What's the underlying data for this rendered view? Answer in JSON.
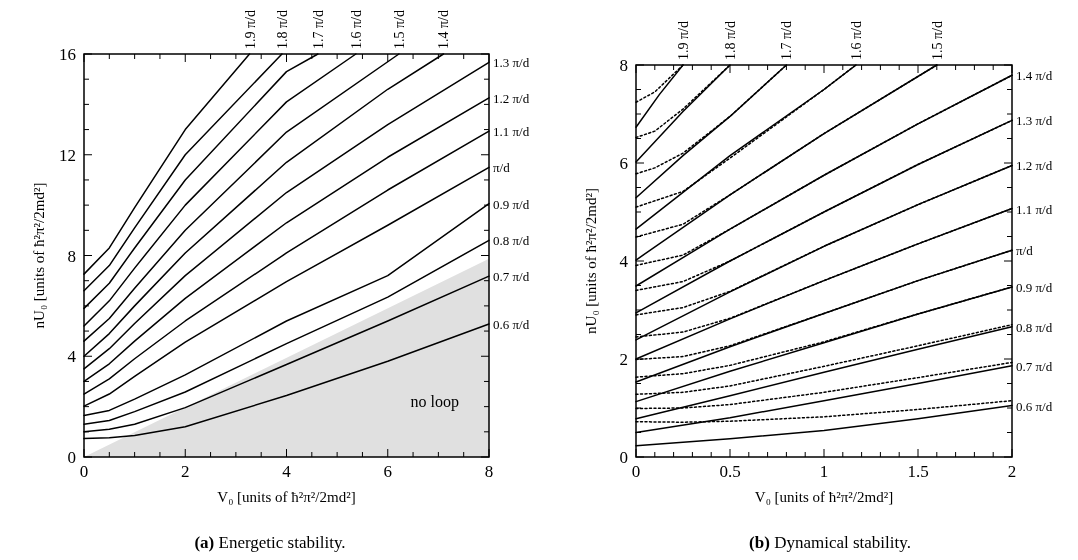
{
  "chart_data": [
    {
      "type": "line",
      "xlabel": "V₀  [units of ħ²π²/2md²]",
      "ylabel": "nU₀  [units of ħ²π²/2md²]",
      "annotations": [
        "no loop",
        "(a) Energetic stability."
      ],
      "legend": "right",
      "line_style": "solid",
      "xlim": [
        0,
        8
      ],
      "ylim": [
        0,
        16
      ],
      "xticks": [
        0,
        {
          "value": 0.5,
          "label": null
        },
        {
          "value": 1,
          "label": null
        },
        {
          "value": 1.5,
          "label": null
        },
        2,
        {
          "value": 2.5,
          "label": null
        },
        {
          "value": 3,
          "label": null
        },
        {
          "value": 3.5,
          "label": null
        },
        4,
        {
          "value": 4.5,
          "label": null
        },
        {
          "value": 5,
          "label": null
        },
        {
          "value": 5.5,
          "label": null
        },
        6,
        {
          "value": 6.5,
          "label": null
        },
        {
          "value": 7,
          "label": null
        },
        {
          "value": 7.5,
          "label": null
        },
        8
      ],
      "yticks": [
        0,
        {
          "value": 1,
          "label": null
        },
        {
          "value": 2,
          "label": null
        },
        {
          "value": 3,
          "label": null
        },
        4,
        {
          "value": 5,
          "label": null
        },
        {
          "value": 6,
          "label": null
        },
        {
          "value": 7,
          "label": null
        },
        8,
        {
          "value": 9,
          "label": null
        },
        {
          "value": 10,
          "label": null
        },
        {
          "value": 11,
          "label": null
        },
        12,
        {
          "value": 13,
          "label": null
        },
        {
          "value": 14,
          "label": null
        },
        {
          "value": 15,
          "label": null
        },
        16
      ],
      "series": [
        {
          "type": "area",
          "color": "#e0e0e0",
          "x": [
            0,
            8
          ],
          "values": [
            0,
            7.87
          ]
        },
        {
          "name": "0.6 π/d",
          "color": "#000000",
          "x": [
            0,
            0.5,
            1,
            2,
            4,
            6,
            8
          ],
          "values": [
            0.73,
            0.76,
            0.85,
            1.2,
            2.44,
            3.8,
            5.28
          ]
        },
        {
          "name": "0.7 π/d",
          "color": "#000000",
          "x": [
            0,
            0.5,
            1,
            2,
            4,
            6,
            8
          ],
          "values": [
            1.0,
            1.1,
            1.3,
            1.96,
            3.67,
            5.4,
            7.18
          ]
        },
        {
          "name": "0.8 π/d",
          "color": "#000000",
          "x": [
            0,
            0.5,
            1,
            2,
            4,
            6,
            8
          ],
          "values": [
            1.3,
            1.45,
            1.8,
            2.58,
            4.5,
            6.35,
            8.6
          ]
        },
        {
          "name": "0.9 π/d",
          "color": "#000000",
          "x": [
            0,
            0.5,
            1,
            2,
            4,
            6,
            8
          ],
          "values": [
            1.65,
            1.85,
            2.3,
            3.26,
            5.4,
            7.2,
            10.06
          ]
        },
        {
          "name": "π/d",
          "color": "#000000",
          "x": [
            0,
            0.5,
            1,
            2,
            4,
            6,
            8
          ],
          "values": [
            2.02,
            2.5,
            3.2,
            4.56,
            6.96,
            9.2,
            11.5
          ]
        },
        {
          "name": "1.1 π/d",
          "color": "#000000",
          "x": [
            0,
            0.5,
            1,
            2,
            4,
            6,
            8
          ],
          "values": [
            2.5,
            3.1,
            3.9,
            5.4,
            8.1,
            10.6,
            12.94
          ]
        },
        {
          "name": "1.2 π/d",
          "color": "#000000",
          "x": [
            0,
            0.5,
            1,
            2,
            4,
            6,
            8
          ],
          "values": [
            3.0,
            3.7,
            4.6,
            6.3,
            9.3,
            11.9,
            14.26
          ]
        },
        {
          "name": "1.3 π/d",
          "color": "#000000",
          "x": [
            0,
            0.5,
            1,
            2,
            4,
            6,
            8
          ],
          "values": [
            3.5,
            4.3,
            5.3,
            7.2,
            10.5,
            13.2,
            15.67
          ]
        },
        {
          "name": "1.4 π/d",
          "color": "#000000",
          "x": [
            0,
            0.5,
            1,
            2,
            4,
            6,
            7.1
          ],
          "values": [
            4.0,
            4.9,
            6.0,
            8.1,
            11.7,
            14.6,
            16
          ]
        },
        {
          "name": "1.5 π/d",
          "color": "#000000",
          "x": [
            0,
            0.5,
            1,
            2,
            4,
            6.22
          ],
          "values": [
            4.6,
            5.5,
            6.7,
            9.0,
            12.9,
            16
          ]
        },
        {
          "name": "1.6 π/d",
          "color": "#000000",
          "x": [
            0,
            0.5,
            1,
            2,
            4,
            5.37
          ],
          "values": [
            5.2,
            6.2,
            7.5,
            10.0,
            14.1,
            16
          ]
        },
        {
          "name": "1.7 π/d",
          "color": "#000000",
          "x": [
            0,
            0.5,
            1,
            2,
            4,
            4.62
          ],
          "values": [
            5.9,
            6.9,
            8.3,
            11.0,
            15.3,
            16
          ]
        },
        {
          "name": "1.8 π/d",
          "color": "#000000",
          "x": [
            0,
            0.5,
            1,
            2,
            3.91
          ],
          "values": [
            6.6,
            7.6,
            9.1,
            12.0,
            16
          ]
        },
        {
          "name": "1.9 π/d",
          "color": "#000000",
          "x": [
            0,
            0.5,
            1,
            2,
            3.27
          ],
          "values": [
            7.26,
            8.3,
            9.9,
            13.0,
            16
          ]
        }
      ]
    },
    {
      "type": "line",
      "xlabel": "V₀  [units of ħ²π²/2md²]",
      "ylabel": "nU₀  [units of ħ²π²/2md²]",
      "annotations": [
        "(b) Dynamical stability."
      ],
      "legend": "right",
      "line_style": "solid",
      "xlim": [
        0,
        2
      ],
      "ylim": [
        0,
        8
      ],
      "xticks": [
        0,
        {
          "value": 0.1,
          "label": null
        },
        {
          "value": 0.2,
          "label": null
        },
        {
          "value": 0.3,
          "label": null
        },
        {
          "value": 0.4,
          "label": null
        },
        0.5,
        {
          "value": 0.6,
          "label": null
        },
        {
          "value": 0.7,
          "label": null
        },
        {
          "value": 0.8,
          "label": null
        },
        {
          "value": 0.9,
          "label": null
        },
        1,
        {
          "value": 1.1,
          "label": null
        },
        {
          "value": 1.2,
          "label": null
        },
        {
          "value": 1.3,
          "label": null
        },
        {
          "value": 1.4,
          "label": null
        },
        1.5,
        {
          "value": 1.6,
          "label": null
        },
        {
          "value": 1.7,
          "label": null
        },
        {
          "value": 1.8,
          "label": null
        },
        {
          "value": 1.9,
          "label": null
        },
        2
      ],
      "yticks": [
        0,
        {
          "value": 0.5,
          "label": null
        },
        {
          "value": 1,
          "label": null
        },
        {
          "value": 1.5,
          "label": null
        },
        2,
        {
          "value": 2.5,
          "label": null
        },
        {
          "value": 3,
          "label": null
        },
        {
          "value": 3.5,
          "label": null
        },
        4,
        {
          "value": 4.5,
          "label": null
        },
        {
          "value": 5,
          "label": null
        },
        {
          "value": 5.5,
          "label": null
        },
        6,
        {
          "value": 6.5,
          "label": null
        },
        {
          "value": 7,
          "label": null
        },
        {
          "value": 7.5,
          "label": null
        },
        8
      ],
      "series": [
        {
          "color": "#000000",
          "line_style": "dotted",
          "x": [
            0,
            0.25,
            0.5,
            1,
            1.5,
            2
          ],
          "values": [
            0.72,
            0.71,
            0.73,
            0.82,
            0.97,
            1.15
          ]
        },
        {
          "color": "#000000",
          "line_style": "dotted",
          "x": [
            0,
            0.25,
            0.5,
            1,
            1.5,
            2
          ],
          "values": [
            0.99,
            1.0,
            1.07,
            1.32,
            1.62,
            1.93
          ]
        },
        {
          "color": "#000000",
          "line_style": "dotted",
          "x": [
            0,
            0.25,
            0.5,
            1,
            1.5,
            2
          ],
          "values": [
            1.28,
            1.32,
            1.45,
            1.85,
            2.27,
            2.7
          ]
        },
        {
          "color": "#000000",
          "line_style": "dotted",
          "x": [
            0,
            0.25,
            0.5,
            1,
            1.5,
            2
          ],
          "values": [
            1.63,
            1.7,
            1.87,
            2.35,
            2.92,
            3.47
          ]
        },
        {
          "color": "#000000",
          "line_style": "dotted",
          "x": [
            0,
            0.25,
            0.5,
            1,
            1.5,
            2
          ],
          "values": [
            1.99,
            2.05,
            2.27,
            2.93,
            3.6,
            4.22
          ]
        },
        {
          "color": "#000000",
          "line_style": "dotted",
          "x": [
            0,
            0.25,
            0.5,
            1,
            1.5,
            2
          ],
          "values": [
            2.45,
            2.55,
            2.83,
            3.6,
            4.35,
            5.07
          ]
        },
        {
          "color": "#000000",
          "line_style": "dotted",
          "x": [
            0,
            0.25,
            0.5,
            1,
            1.5,
            2
          ],
          "values": [
            2.9,
            3.05,
            3.38,
            4.3,
            5.15,
            5.95
          ]
        },
        {
          "color": "#000000",
          "line_style": "dotted",
          "x": [
            0,
            0.25,
            0.5,
            1,
            1.5,
            2
          ],
          "values": [
            3.4,
            3.58,
            4.0,
            5.0,
            5.97,
            6.87
          ]
        },
        {
          "color": "#000000",
          "line_style": "dotted",
          "x": [
            0,
            0.25,
            0.5,
            1,
            1.5,
            2
          ],
          "values": [
            3.91,
            4.12,
            4.65,
            5.75,
            6.8,
            7.79
          ]
        },
        {
          "color": "#000000",
          "line_style": "dotted",
          "x": [
            0,
            0.25,
            0.5,
            1,
            1.6
          ],
          "values": [
            4.49,
            4.75,
            5.35,
            6.6,
            8
          ]
        },
        {
          "color": "#000000",
          "line_style": "dotted",
          "x": [
            0,
            0.25,
            0.5,
            1,
            1.17
          ],
          "values": [
            5.1,
            5.42,
            6.1,
            7.5,
            8
          ]
        },
        {
          "color": "#000000",
          "line_style": "dotted",
          "x": [
            0,
            0.1,
            0.25,
            0.5,
            0.8
          ],
          "values": [
            5.78,
            5.9,
            6.2,
            6.95,
            8
          ]
        },
        {
          "color": "#000000",
          "line_style": "dotted",
          "x": [
            0,
            0.1,
            0.25,
            0.5
          ],
          "values": [
            6.52,
            6.65,
            7.1,
            8
          ]
        },
        {
          "color": "#000000",
          "line_style": "dotted",
          "x": [
            0,
            0.1,
            0.25
          ],
          "values": [
            7.24,
            7.45,
            8
          ]
        },
        {
          "name": "0.6 π/d",
          "color": "#000000",
          "x": [
            0,
            0.5,
            1,
            1.5,
            2
          ],
          "values": [
            0.23,
            0.37,
            0.54,
            0.78,
            1.05
          ]
        },
        {
          "name": "0.7 π/d",
          "color": "#000000",
          "x": [
            0,
            0.5,
            1,
            1.5,
            2
          ],
          "values": [
            0.5,
            0.8,
            1.15,
            1.5,
            1.86
          ]
        },
        {
          "name": "0.8 π/d",
          "color": "#000000",
          "x": [
            0,
            0.5,
            1,
            1.5,
            2
          ],
          "values": [
            0.78,
            1.25,
            1.73,
            2.2,
            2.66
          ]
        },
        {
          "name": "0.9 π/d",
          "color": "#000000",
          "x": [
            0,
            0.5,
            1,
            1.5,
            2
          ],
          "values": [
            1.13,
            1.75,
            2.33,
            2.92,
            3.47
          ]
        },
        {
          "name": "π/d",
          "color": "#000000",
          "x": [
            0,
            0.5,
            1,
            1.5,
            2
          ],
          "values": [
            1.53,
            2.25,
            2.93,
            3.6,
            4.22
          ]
        },
        {
          "name": "1.1 π/d",
          "color": "#000000",
          "x": [
            0,
            0.5,
            1,
            1.5,
            2
          ],
          "values": [
            2.0,
            2.82,
            3.6,
            4.35,
            5.07
          ]
        },
        {
          "name": "1.2 π/d",
          "color": "#000000",
          "x": [
            0,
            0.5,
            1,
            1.5,
            2
          ],
          "values": [
            2.39,
            3.37,
            4.3,
            5.15,
            5.95
          ]
        },
        {
          "name": "1.3 π/d",
          "color": "#000000",
          "x": [
            0,
            0.5,
            1,
            1.5,
            2
          ],
          "values": [
            2.94,
            4.0,
            5.0,
            5.97,
            6.87
          ]
        },
        {
          "name": "1.4 π/d",
          "color": "#000000",
          "x": [
            0,
            0.5,
            1,
            1.5,
            2
          ],
          "values": [
            3.49,
            4.65,
            5.75,
            6.8,
            7.79
          ]
        },
        {
          "name": "1.5 π/d",
          "color": "#000000",
          "x": [
            0,
            0.5,
            1,
            1.6
          ],
          "values": [
            4.02,
            5.35,
            6.6,
            8
          ]
        },
        {
          "name": "1.6 π/d",
          "color": "#000000",
          "x": [
            0,
            0.5,
            1,
            1.17
          ],
          "values": [
            4.65,
            6.15,
            7.5,
            8
          ]
        },
        {
          "name": "1.7 π/d",
          "color": "#000000",
          "x": [
            0,
            0.25,
            0.5,
            0.8
          ],
          "values": [
            5.29,
            6.15,
            6.95,
            8
          ]
        },
        {
          "name": "1.8 π/d",
          "color": "#000000",
          "x": [
            0,
            0.25,
            0.5
          ],
          "values": [
            6.02,
            7.05,
            8
          ]
        },
        {
          "name": "1.9 π/d",
          "color": "#000000",
          "x": [
            0,
            0.125,
            0.25
          ],
          "values": [
            6.73,
            7.4,
            8
          ]
        }
      ]
    }
  ]
}
